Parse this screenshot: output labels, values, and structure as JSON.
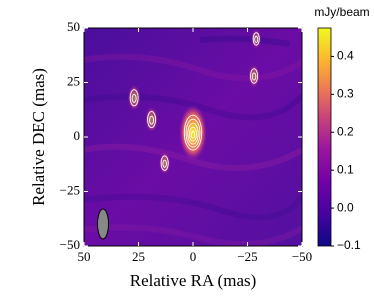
{
  "chart_data": {
    "type": "image",
    "xlabel": "Relative RA (mas)",
    "ylabel": "Relative DEC (mas)",
    "xlim": [
      50,
      -50
    ],
    "xticks": [
      50,
      25,
      0,
      {
        "value": -25,
        "label": "−25"
      },
      {
        "value": -50,
        "label": "−50"
      }
    ],
    "ylim": [
      -50,
      50
    ],
    "yticks": [
      {
        "value": -50,
        "label": "−50"
      },
      {
        "value": -25,
        "label": "−25"
      },
      0,
      25,
      50
    ],
    "colorbar": {
      "label": "mJy/beam",
      "lim": [
        -0.1,
        0.475
      ],
      "ticks": [
        {
          "value": -0.1,
          "label": "−0.1"
        },
        {
          "value": 0,
          "label": "0.0"
        },
        0.1,
        0.2,
        0.3,
        0.4
      ],
      "colormap": "plasma"
    },
    "sources": [
      {
        "x": 0,
        "y": 2,
        "peak": 0.47
      },
      {
        "x": 27,
        "y": 18,
        "peak": 0.1
      },
      {
        "x": 19,
        "y": 8,
        "peak": 0.1
      },
      {
        "x": 13,
        "y": -12,
        "peak": 0.08
      },
      {
        "x": -28,
        "y": 28,
        "peak": 0.08
      },
      {
        "x": -29,
        "y": 45,
        "peak": 0.06
      }
    ]
  }
}
